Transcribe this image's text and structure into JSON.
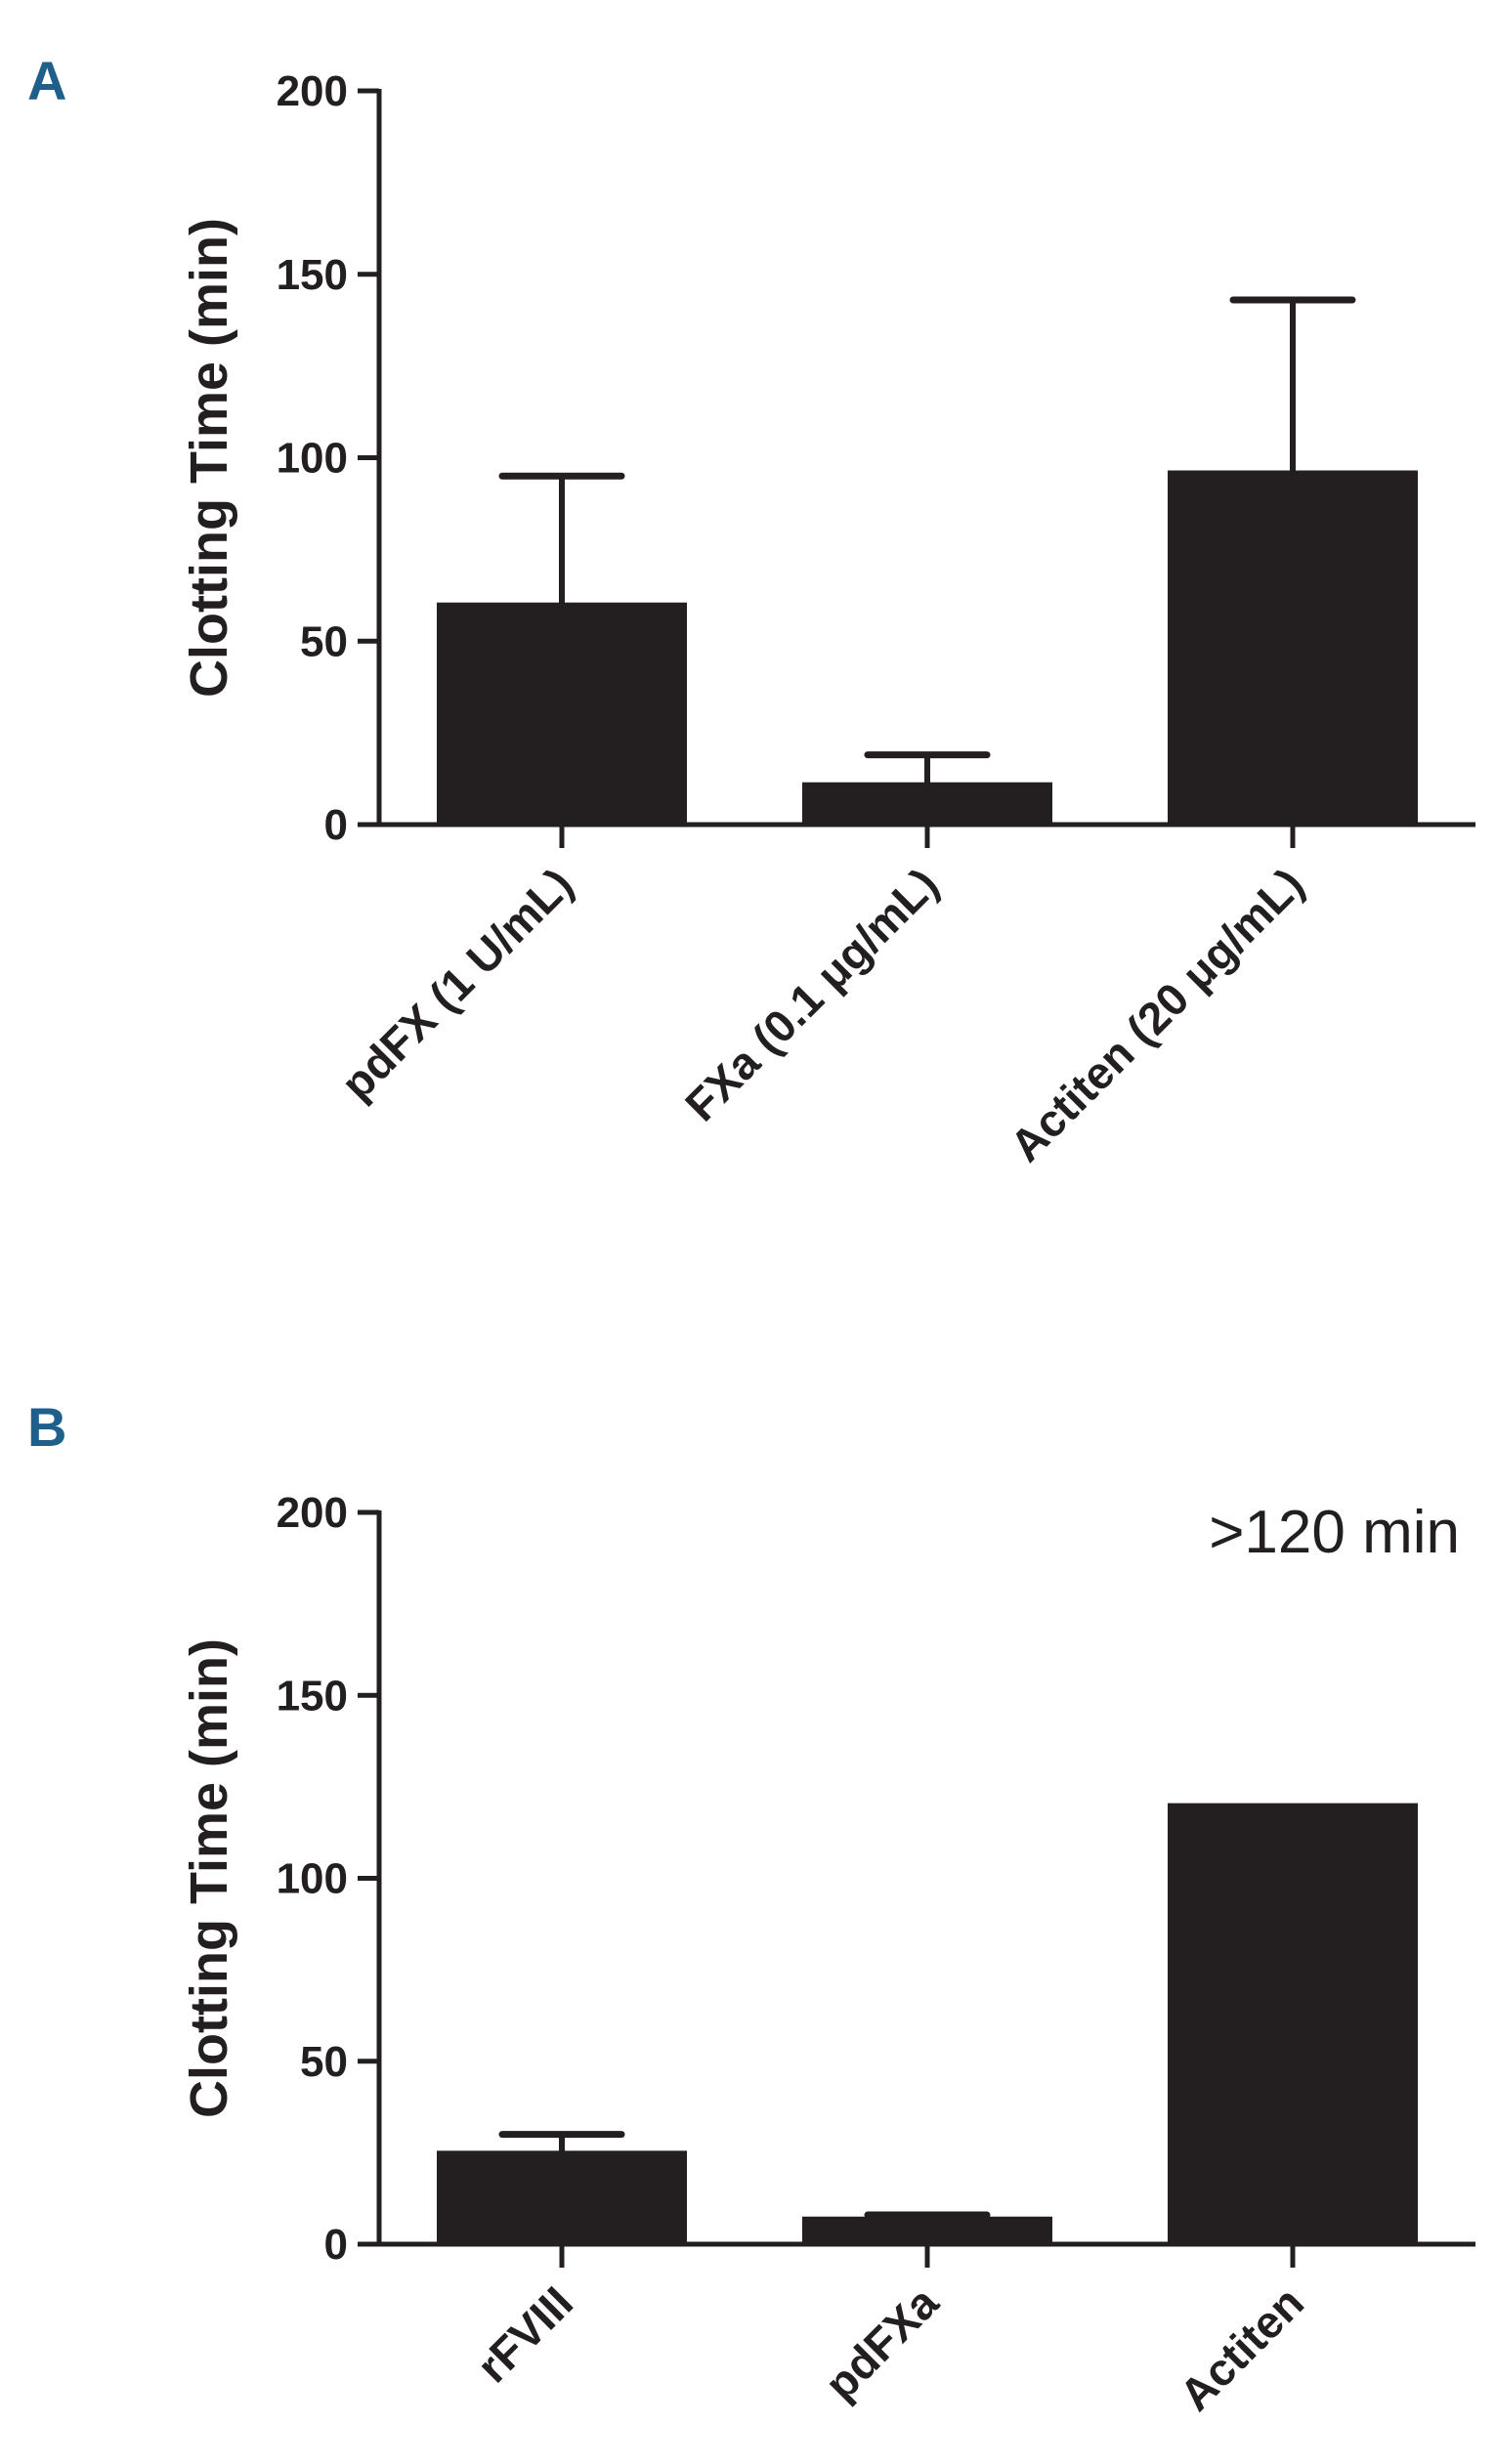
{
  "chart_data": [
    {
      "panel": "A",
      "type": "bar",
      "categories": [
        "pdFX (1 U/mL)",
        "FXa (0.1 μg/mL)",
        "Actiten (20 μg/mL)"
      ],
      "values": [
        60,
        11,
        96
      ],
      "error_upper": [
        95,
        19,
        143
      ],
      "ylabel": "Clotting Time (min)",
      "xlabel": "",
      "ylim": [
        0,
        200
      ],
      "yticks": [
        "0",
        "50",
        "100",
        "150",
        "200"
      ],
      "bar_color": "#231f20",
      "annotations": []
    },
    {
      "panel": "B",
      "type": "bar",
      "categories": [
        "rFVIII",
        "pdFXa",
        "Actiten"
      ],
      "values": [
        25,
        7,
        120
      ],
      "error_upper": [
        30,
        8,
        null
      ],
      "ylabel": "Clotting Time (min)",
      "xlabel": "",
      "ylim": [
        0,
        200
      ],
      "yticks": [
        "0",
        "50",
        "100",
        "150",
        "200"
      ],
      "bar_color": "#231f20",
      "annotations": [
        ">120 min"
      ]
    }
  ]
}
